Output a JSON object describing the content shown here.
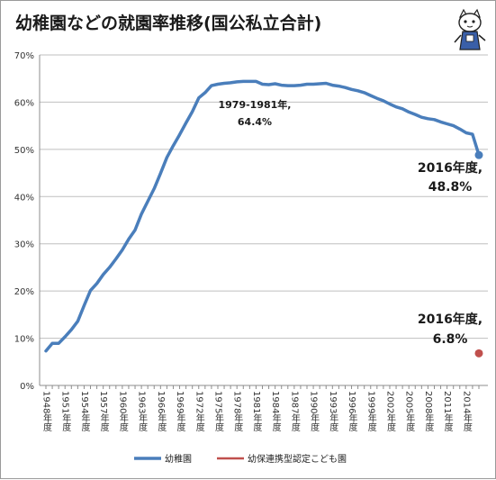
{
  "chart_data": {
    "type": "line",
    "title": "幼稚園などの就園率推移(国公私立合計)",
    "ylim": [
      0,
      70
    ],
    "yticks": [
      "0%",
      "10%",
      "20%",
      "30%",
      "40%",
      "50%",
      "60%",
      "70%"
    ],
    "grid": true,
    "legend_position": "bottom",
    "x_tick_labels": [
      "1948年度",
      "1951年度",
      "1954年度",
      "1957年度",
      "1960年度",
      "1963年度",
      "1966年度",
      "1969年度",
      "1972年度",
      "1975年度",
      "1978年度",
      "1981年度",
      "1984年度",
      "1987年度",
      "1990年度",
      "1993年度",
      "1996年度",
      "1999年度",
      "2002年度",
      "2005年度",
      "2008年度",
      "2011年度",
      "2014年度"
    ],
    "x": [
      1948,
      1949,
      1950,
      1951,
      1952,
      1953,
      1954,
      1955,
      1956,
      1957,
      1958,
      1959,
      1960,
      1961,
      1962,
      1963,
      1964,
      1965,
      1966,
      1967,
      1968,
      1969,
      1970,
      1971,
      1972,
      1973,
      1974,
      1975,
      1976,
      1977,
      1978,
      1979,
      1980,
      1981,
      1982,
      1983,
      1984,
      1985,
      1986,
      1987,
      1988,
      1989,
      1990,
      1991,
      1992,
      1993,
      1994,
      1995,
      1996,
      1997,
      1998,
      1999,
      2000,
      2001,
      2002,
      2003,
      2004,
      2005,
      2006,
      2007,
      2008,
      2009,
      2010,
      2011,
      2012,
      2013,
      2014,
      2015,
      2016
    ],
    "series": [
      {
        "name": "幼稚園",
        "color": "#4a7ebb",
        "values": [
          7.3,
          8.9,
          8.9,
          10.3,
          11.8,
          13.6,
          16.9,
          20.1,
          21.6,
          23.5,
          25.0,
          26.8,
          28.7,
          31.0,
          32.9,
          36.3,
          39.0,
          41.7,
          44.9,
          48.3,
          50.8,
          53.1,
          55.6,
          58.0,
          60.9,
          62.0,
          63.5,
          63.8,
          64.0,
          64.1,
          64.3,
          64.4,
          64.4,
          64.4,
          63.8,
          63.7,
          63.9,
          63.6,
          63.5,
          63.5,
          63.6,
          63.8,
          63.8,
          63.9,
          64.0,
          63.6,
          63.4,
          63.1,
          62.7,
          62.4,
          62.0,
          61.4,
          60.8,
          60.3,
          59.6,
          59.0,
          58.6,
          57.9,
          57.4,
          56.8,
          56.5,
          56.3,
          55.8,
          55.4,
          55.0,
          54.3,
          53.5,
          53.2,
          48.8
        ]
      },
      {
        "name": "幼保連携型認定こども園",
        "color": "#c0504d",
        "points": [
          [
            2016,
            6.8
          ]
        ]
      }
    ],
    "annotations": [
      {
        "line1": "1979-1981年,",
        "line2": "64.4%"
      },
      {
        "line1": "2016年度,",
        "line2": "48.8%"
      },
      {
        "line1": "2016年度,",
        "line2": "6.8%"
      }
    ]
  }
}
